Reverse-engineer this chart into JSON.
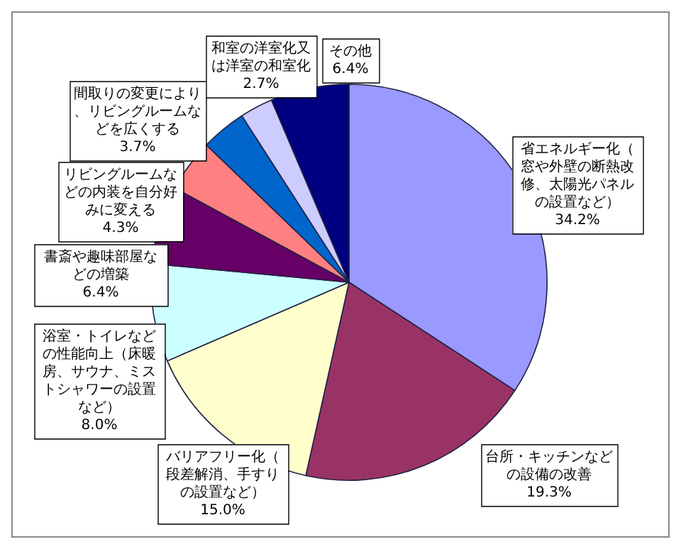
{
  "chart_data": {
    "type": "pie",
    "categories": [
      "省エネルギー化（窓や外壁の断熱改修、太陽光パネルの設置など）",
      "台所・キッチンなどの設備の改善",
      "バリアフリー化（段差解消、手すりの設置など）",
      "浴室・トイレなどの性能向上（床暖房、サウナ、ミストシャワーの設置など）",
      "書斎や趣味部屋などの増築",
      "リビングルームなどの内装を自分好みに変える",
      "間取りの変更により、リビングルームなどを広くする",
      "和室の洋室化又は洋室の和室化",
      "その他"
    ],
    "values": [
      34.2,
      19.3,
      15.0,
      8.0,
      6.4,
      4.3,
      3.7,
      2.7,
      6.4
    ],
    "colors": [
      "#9999ff",
      "#993366",
      "#ffffcc",
      "#ccffff",
      "#660066",
      "#ff8080",
      "#0066cc",
      "#ccccff",
      "#000080"
    ],
    "value_labels": [
      "34.2%",
      "19.3%",
      "15.0%",
      "8.0%",
      "6.4%",
      "4.3%",
      "3.7%",
      "2.7%",
      "6.4%"
    ],
    "legend": false
  }
}
